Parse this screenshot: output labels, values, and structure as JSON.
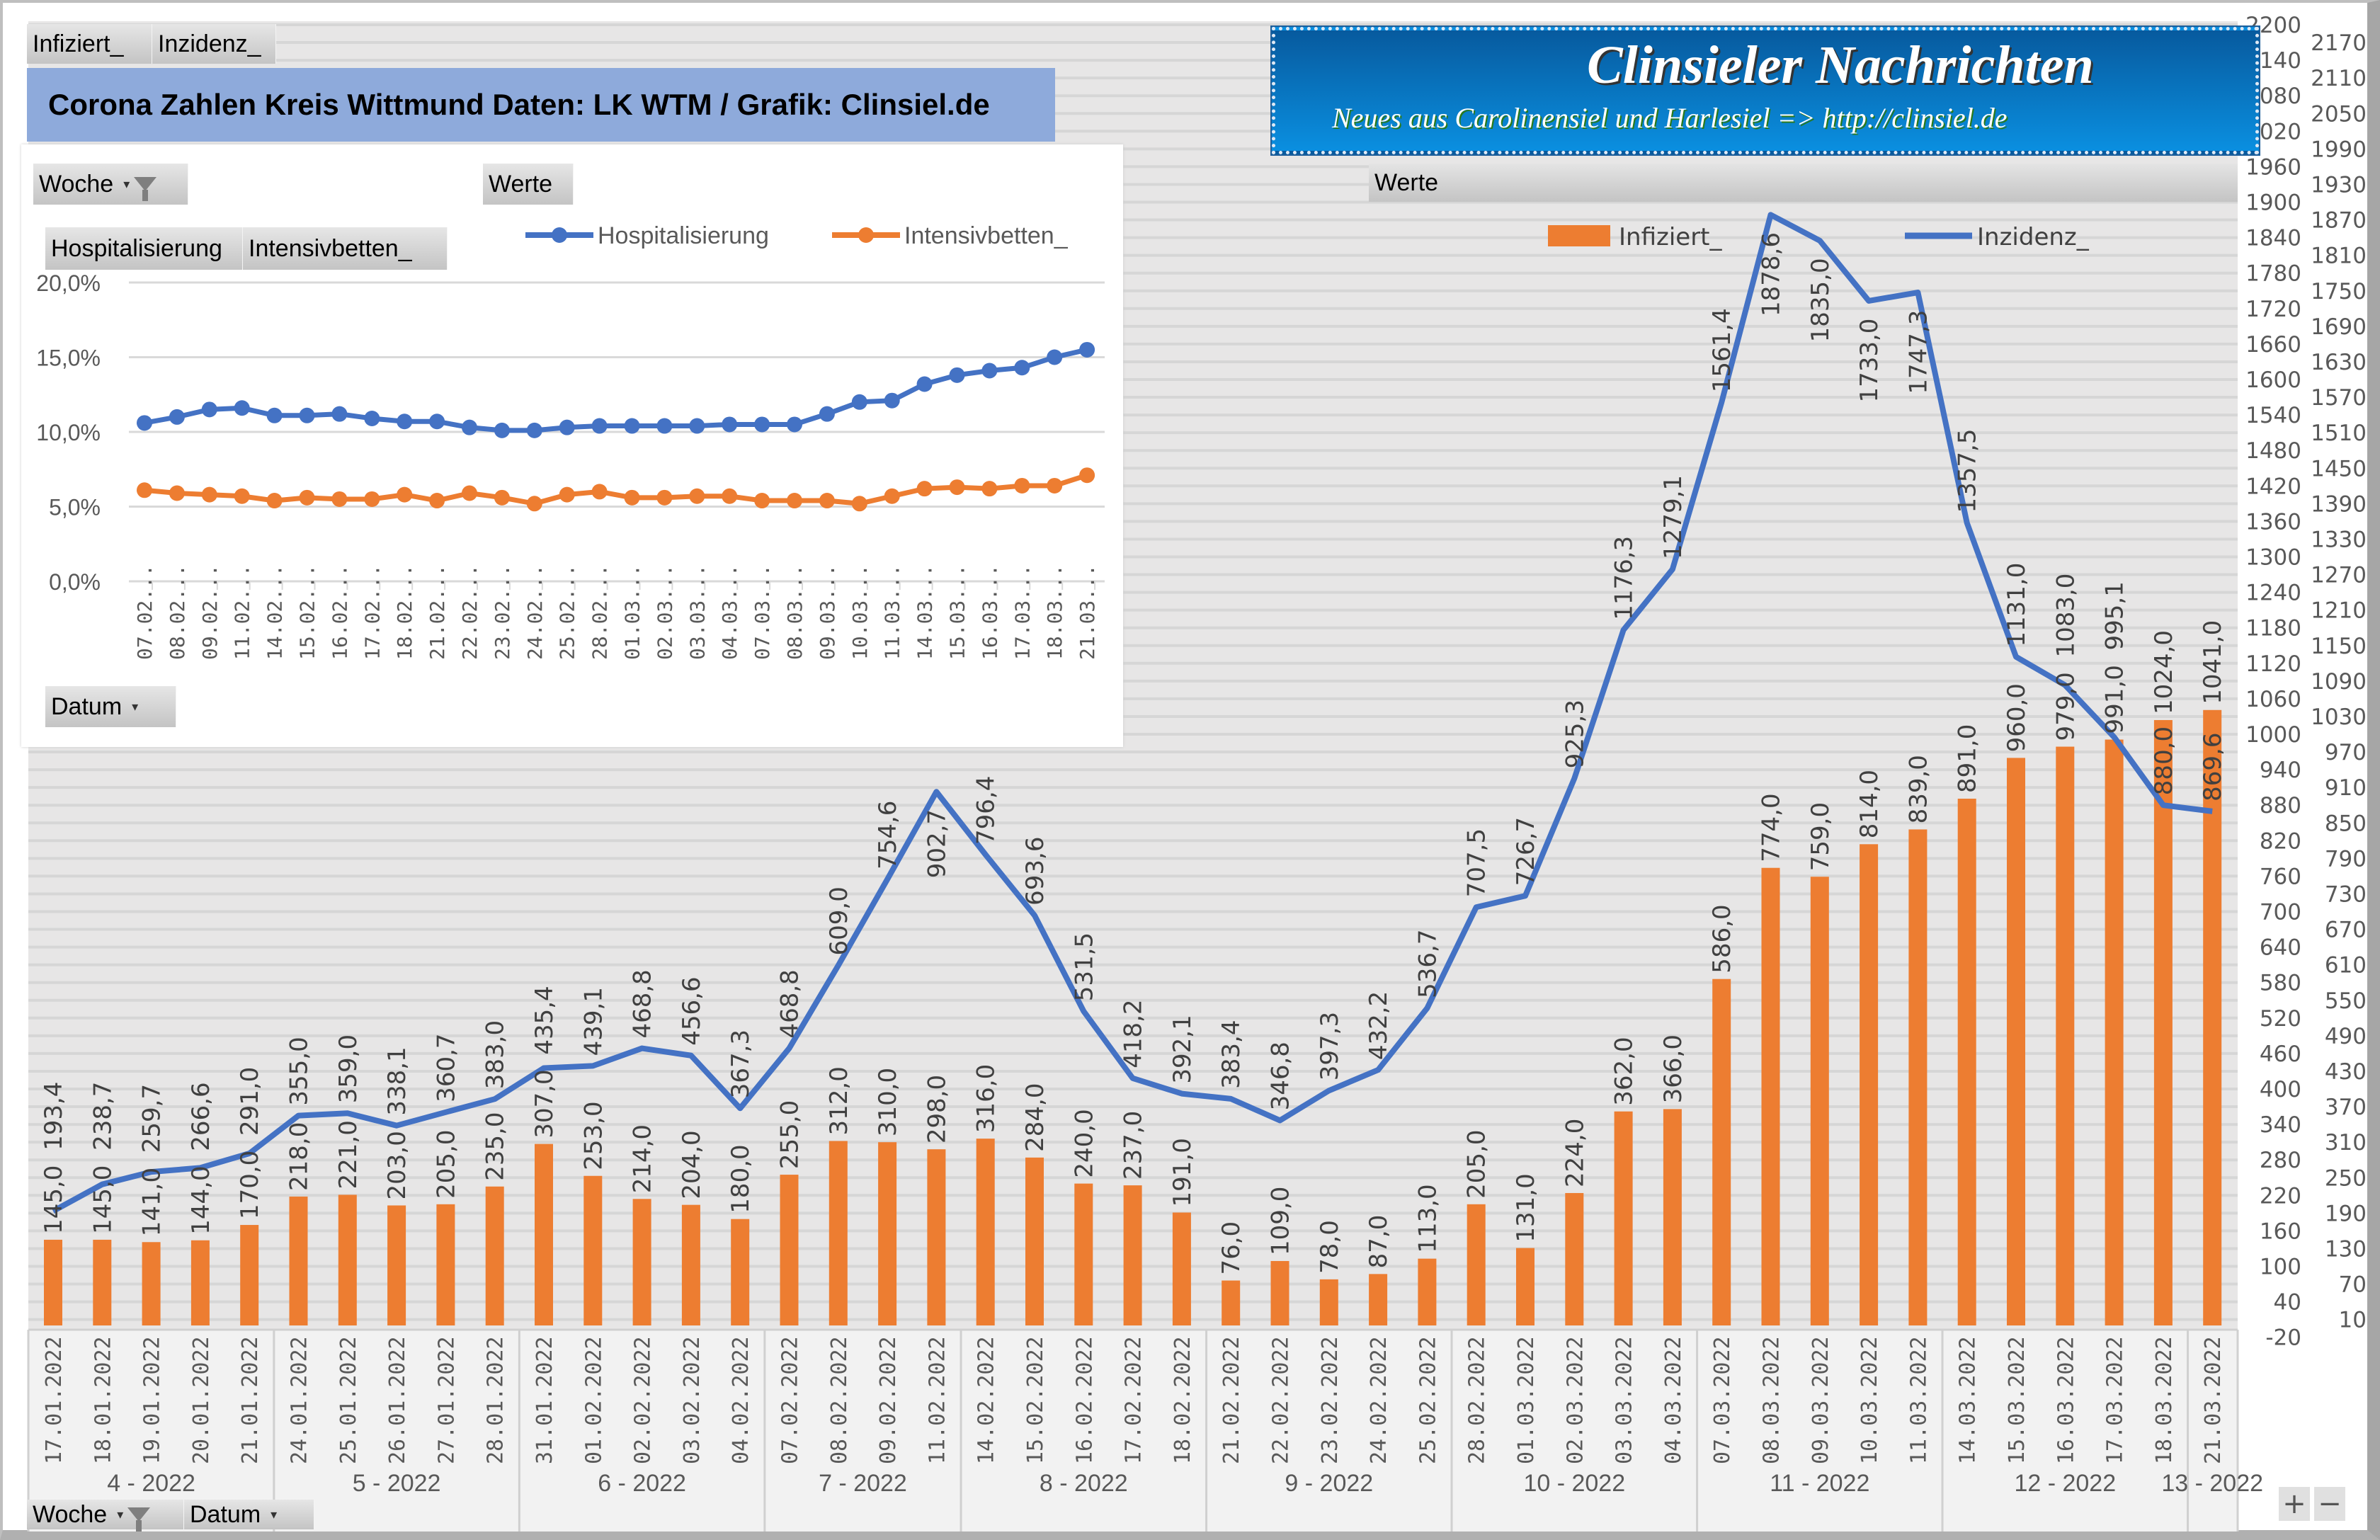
{
  "top_buttons": [
    "Infiziert_",
    "Inzidenz_"
  ],
  "title": "Corona Zahlen Kreis Wittmund  Daten: LK WTM / Grafik: Clinsiel.de",
  "logo": {
    "line1": "Clinsieler Nachrichten",
    "line2": "Neues aus Carolinensiel und Harlesiel     => http://clinsiel.de"
  },
  "werte_label": "Werte",
  "bottom_buttons": {
    "woche": "Woche",
    "datum": "Datum"
  },
  "zoom": {
    "plus": "+",
    "minus": "−"
  },
  "icons": {
    "filter": "funnel-icon",
    "dropdown": "dropdown-arrow-icon"
  },
  "inset": {
    "woche_label": "Woche",
    "werte_label": "Werte",
    "field_buttons": [
      "Hospitalisierung",
      "Intensivbetten_"
    ],
    "datum_label": "Datum"
  },
  "chart_data": [
    {
      "type": "line",
      "y_ticks": [
        "20,0%",
        "15,0%",
        "10,0%",
        "5,0%",
        "0,0%"
      ],
      "ylim": [
        0,
        20
      ],
      "grid": true,
      "legend": "top",
      "categories": [
        "07.02...",
        "08.02...",
        "09.02...",
        "11.02...",
        "14.02...",
        "15.02...",
        "16.02...",
        "17.02...",
        "18.02...",
        "21.02...",
        "22.02...",
        "23.02...",
        "24.02...",
        "25.02...",
        "28.02...",
        "01.03...",
        "02.03...",
        "03.03...",
        "04.03...",
        "07.03...",
        "08.03...",
        "09.03...",
        "10.03...",
        "11.03...",
        "14.03...",
        "15.03...",
        "16.03...",
        "17.03...",
        "18.03...",
        "21.03..."
      ],
      "series": [
        {
          "name": "Hospitalisierung",
          "color": "#4472c4",
          "values": [
            10.6,
            11.0,
            11.5,
            11.6,
            11.1,
            11.1,
            11.2,
            10.9,
            10.7,
            10.7,
            10.3,
            10.1,
            10.1,
            10.3,
            10.4,
            10.4,
            10.4,
            10.4,
            10.5,
            10.5,
            10.5,
            11.2,
            12.0,
            12.1,
            13.2,
            13.8,
            14.1,
            14.3,
            15.0,
            15.5
          ]
        },
        {
          "name": "Intensivbetten_",
          "color": "#ed7d31",
          "values": [
            6.1,
            5.9,
            5.8,
            5.7,
            5.4,
            5.6,
            5.5,
            5.5,
            5.8,
            5.4,
            5.9,
            5.6,
            5.2,
            5.8,
            6.0,
            5.6,
            5.6,
            5.7,
            5.7,
            5.4,
            5.4,
            5.4,
            5.2,
            5.7,
            6.2,
            6.3,
            6.2,
            6.4,
            6.4,
            7.1
          ]
        }
      ]
    },
    {
      "type": "bar+line",
      "ylim": [
        -20,
        2200
      ],
      "grid": true,
      "legend": "top-right",
      "y_ticks": [
        "2200",
        "2170",
        "2140",
        "2110",
        "2080",
        "2050",
        "2020",
        "1990",
        "1960",
        "1930",
        "1900",
        "1870",
        "1840",
        "1810",
        "1780",
        "1750",
        "1720",
        "1690",
        "1660",
        "1630",
        "1600",
        "1570",
        "1540",
        "1510",
        "1480",
        "1450",
        "1420",
        "1390",
        "1360",
        "1330",
        "1300",
        "1270",
        "1240",
        "1210",
        "1180",
        "1150",
        "1120",
        "1090",
        "1060",
        "1030",
        "1000",
        "970",
        "940",
        "910",
        "880",
        "850",
        "820",
        "790",
        "760",
        "730",
        "700",
        "670",
        "640",
        "610",
        "580",
        "550",
        "520",
        "490",
        "460",
        "430",
        "400",
        "370",
        "340",
        "310",
        "280",
        "250",
        "220",
        "190",
        "160",
        "130",
        "100",
        "70",
        "40",
        "10",
        "-20"
      ],
      "categories": [
        "17.01.2022",
        "18.01.2022",
        "19.01.2022",
        "20.01.2022",
        "21.01.2022",
        "24.01.2022",
        "25.01.2022",
        "26.01.2022",
        "27.01.2022",
        "28.01.2022",
        "31.01.2022",
        "01.02.2022",
        "02.02.2022",
        "03.02.2022",
        "04.02.2022",
        "07.02.2022",
        "08.02.2022",
        "09.02.2022",
        "11.02.2022",
        "14.02.2022",
        "15.02.2022",
        "16.02.2022",
        "17.02.2022",
        "18.02.2022",
        "21.02.2022",
        "22.02.2022",
        "23.02.2022",
        "24.02.2022",
        "25.02.2022",
        "28.02.2022",
        "01.03.2022",
        "02.03.2022",
        "03.03.2022",
        "04.03.2022",
        "07.03.2022",
        "08.03.2022",
        "09.03.2022",
        "10.03.2022",
        "11.03.2022",
        "14.03.2022",
        "15.03.2022",
        "16.03.2022",
        "17.03.2022",
        "18.03.2022",
        "21.03.2022"
      ],
      "weeks": [
        {
          "label": "4 - 2022",
          "count": 5
        },
        {
          "label": "5 - 2022",
          "count": 5
        },
        {
          "label": "6 - 2022",
          "count": 5
        },
        {
          "label": "7 - 2022",
          "count": 4
        },
        {
          "label": "8 - 2022",
          "count": 5
        },
        {
          "label": "9 - 2022",
          "count": 5
        },
        {
          "label": "10 - 2022",
          "count": 5
        },
        {
          "label": "11 - 2022",
          "count": 5
        },
        {
          "label": "12 - 2022",
          "count": 5
        },
        {
          "label": "13 - 2022",
          "count": 1
        }
      ],
      "series": [
        {
          "name": "Infiziert_",
          "type": "bar",
          "color": "#ed7d31",
          "values": [
            145,
            145,
            141,
            144,
            170,
            218,
            221,
            203,
            205,
            235,
            307,
            253,
            214,
            204,
            180,
            255,
            312,
            310,
            298,
            316,
            284,
            240,
            237,
            191,
            76,
            109,
            78,
            87,
            113,
            205,
            131,
            224,
            362,
            366,
            586,
            774,
            759,
            814,
            839,
            891,
            960,
            979,
            991,
            1024,
            1041
          ],
          "labels": [
            "145,0",
            "145,0",
            "141,0",
            "144,0",
            "170,0",
            "218,0",
            "221,0",
            "203,0",
            "205,0",
            "235,0",
            "307,0",
            "253,0",
            "214,0",
            "204,0",
            "180,0",
            "255,0",
            "312,0",
            "310,0",
            "298,0",
            "316,0",
            "284,0",
            "240,0",
            "237,0",
            "191,0",
            "76,0",
            "109,0",
            "78,0",
            "87,0",
            "113,0",
            "205,0",
            "131,0",
            "224,0",
            "362,0",
            "366,0",
            "586,0",
            "774,0",
            "759,0",
            "814,0",
            "839,0",
            "891,0",
            "960,0",
            "979,0",
            "991,0",
            "1024,0",
            "1041,0"
          ]
        },
        {
          "name": "Inzidenz_",
          "type": "line",
          "color": "#4472c4",
          "values": [
            193.4,
            238.7,
            259.7,
            266.6,
            291.0,
            355.0,
            359.0,
            338.1,
            360.7,
            383.0,
            435.4,
            439.1,
            468.8,
            456.6,
            367.3,
            468.8,
            609.0,
            754.6,
            902.7,
            796.4,
            693.6,
            531.5,
            418.2,
            392.1,
            383.4,
            346.8,
            397.3,
            432.2,
            536.7,
            707.5,
            726.7,
            925.3,
            1176.3,
            1279.1,
            1561.4,
            1878.6,
            1835.0,
            1733.0,
            1747.3,
            1357.5,
            1131.0,
            1083.0,
            995.1,
            880.0,
            869.6
          ],
          "labels": [
            "193,4",
            "238,7",
            "259,7",
            "266,6",
            "291,0",
            "355,0",
            "359,0",
            "338,1",
            "360,7",
            "383,0",
            "435,4",
            "439,1",
            "468,8",
            "456,6",
            "367,3",
            "468,8",
            "609,0",
            "754,6",
            "902,7",
            "796,4",
            "693,6",
            "531,5",
            "418,2",
            "392,1",
            "383,4",
            "346,8",
            "397,3",
            "432,2",
            "536,7",
            "707,5",
            "726,7",
            "925,3",
            "1176,3",
            "1279,1",
            "1561,4",
            "1878,6",
            "1835,0",
            "1733,0",
            "1747,3",
            "1357,5",
            "1131,0",
            "1083,0",
            "995,1",
            "880,0",
            "869,6"
          ]
        }
      ]
    }
  ]
}
